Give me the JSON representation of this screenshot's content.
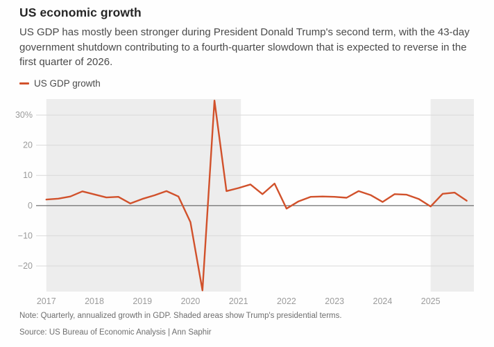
{
  "header": {
    "title": "US economic growth",
    "subtitle": "US GDP has mostly been stronger during President Donald Trump's second term, with the 43-day government shutdown contributing to a fourth-quarter slowdown that is expected to reverse in the first quarter of 2026."
  },
  "legend": {
    "label": "US GDP growth"
  },
  "footer": {
    "note": "Note: Quarterly, annualized growth in GDP. Shaded areas show Trump's presidential terms.",
    "source": "Source: US Bureau of Economic Analysis | Ann Saphir"
  },
  "colors": {
    "line": "#d1512b",
    "shaded_region": "#ededed",
    "gridline": "#d9d9d9",
    "zero_line": "#4d4d4d",
    "axis_label": "#9b9b9b",
    "title_text": "#262626",
    "body_text": "#4a4a4a",
    "footer_text": "#6e6e6e"
  },
  "chart_data": {
    "type": "line",
    "title": "US economic growth",
    "series_name": "US GDP growth",
    "unit": "percent, quarterly annualized rate",
    "frequency": "quarterly",
    "start_year": 2017,
    "values": [
      2.0,
      2.3,
      3.0,
      4.7,
      3.7,
      2.7,
      2.9,
      0.7,
      2.2,
      3.4,
      4.8,
      3.0,
      -5.5,
      -28.1,
      34.8,
      4.8,
      5.8,
      7.0,
      3.8,
      7.3,
      -1.0,
      1.4,
      2.9,
      3.0,
      2.9,
      2.6,
      4.8,
      3.5,
      1.2,
      3.8,
      3.6,
      2.2,
      -0.3,
      3.9,
      4.3,
      1.6
    ],
    "x_ticks": [
      2017,
      2018,
      2019,
      2020,
      2021,
      2022,
      2023,
      2024,
      2025
    ],
    "y_ticks": [
      30,
      20,
      10,
      0,
      -10,
      -20
    ],
    "y_tick_labels": [
      "30%",
      "20",
      "10",
      "0",
      "−10",
      "−20"
    ],
    "x_range": [
      2016.83,
      2025.9
    ],
    "y_range": [
      -28.5,
      35.3
    ],
    "grid": "horizontal",
    "legend_position": "top-left",
    "shaded_regions": [
      {
        "from": 2017.0,
        "to": 2021.05
      },
      {
        "from": 2025.0,
        "to": 2025.9
      }
    ]
  }
}
